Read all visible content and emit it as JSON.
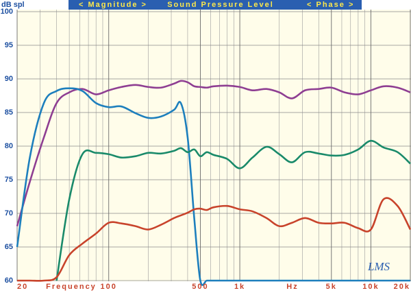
{
  "chart_data": {
    "type": "line",
    "title": "Sound Pressure Level",
    "left_tab": "< Magnitude >",
    "right_tab": "< Phase >",
    "y_label": "dB spl",
    "x_label": "Frequency",
    "x_unit": "Hz",
    "logo": "LMS",
    "x_log": true,
    "grid": true,
    "xlim": [
      20,
      20000
    ],
    "ylim": [
      60,
      100
    ],
    "yticks": [
      60,
      65,
      70,
      75,
      80,
      85,
      90,
      95,
      100
    ],
    "xticks": [
      20,
      100,
      500,
      {
        "value": 1000,
        "label": "1k"
      },
      {
        "value": 5000,
        "label": "5k"
      },
      {
        "value": 10000,
        "label": "10k"
      },
      {
        "value": 20000,
        "label": "20k"
      }
    ],
    "xminor": [
      30,
      40,
      50,
      60,
      70,
      80,
      90,
      200,
      300,
      400,
      600,
      700,
      800,
      900,
      2000,
      3000,
      4000,
      6000,
      7000,
      8000,
      9000
    ],
    "x": [
      20,
      25,
      32,
      40,
      50,
      63,
      80,
      100,
      125,
      160,
      200,
      250,
      315,
      355,
      400,
      450,
      500,
      560,
      630,
      800,
      1000,
      1250,
      1600,
      2000,
      2500,
      3150,
      4000,
      5000,
      6300,
      8000,
      10000,
      12500,
      16000,
      20000
    ],
    "series": [
      {
        "color": "#8e3e92",
        "values": [
          68.1,
          74.7,
          81.3,
          86.4,
          88.0,
          88.5,
          87.7,
          88.3,
          88.8,
          89.1,
          88.8,
          88.7,
          89.3,
          89.7,
          89.5,
          88.9,
          88.8,
          88.7,
          88.9,
          89.0,
          88.8,
          88.3,
          88.5,
          88.0,
          87.1,
          88.3,
          88.5,
          88.7,
          88.0,
          87.7,
          88.3,
          88.9,
          88.7,
          88.0
        ]
      },
      {
        "color": "#1d7fbd",
        "values": [
          65.0,
          78.3,
          86.4,
          88.2,
          88.6,
          88.2,
          86.4,
          85.8,
          85.9,
          84.9,
          84.2,
          84.4,
          85.4,
          86.4,
          81.3,
          69.1,
          60,
          60,
          60,
          60,
          60,
          60,
          60,
          60,
          60,
          60,
          60,
          60,
          60,
          60,
          60,
          60,
          60,
          60
        ]
      },
      {
        "color": "#198a6a",
        "values": [
          null,
          null,
          null,
          60,
          72.1,
          78.8,
          79.0,
          78.8,
          78.3,
          78.5,
          79.0,
          78.9,
          79.3,
          79.7,
          79.1,
          79.5,
          78.5,
          79.1,
          78.7,
          78.1,
          76.7,
          78.3,
          79.9,
          78.8,
          77.6,
          79.1,
          78.9,
          78.6,
          78.7,
          79.5,
          80.8,
          79.8,
          79.1,
          77.4
        ]
      },
      {
        "color": "#c8432b",
        "values": [
          60,
          60,
          60,
          60.5,
          63.8,
          65.5,
          67.0,
          68.6,
          68.5,
          68.1,
          67.6,
          68.3,
          69.3,
          69.7,
          70.1,
          70.6,
          70.7,
          70.5,
          70.9,
          71.1,
          70.6,
          70.3,
          69.3,
          68.1,
          68.6,
          69.3,
          68.6,
          68.5,
          68.6,
          67.8,
          67.6,
          72.1,
          71.1,
          67.6
        ]
      }
    ]
  }
}
